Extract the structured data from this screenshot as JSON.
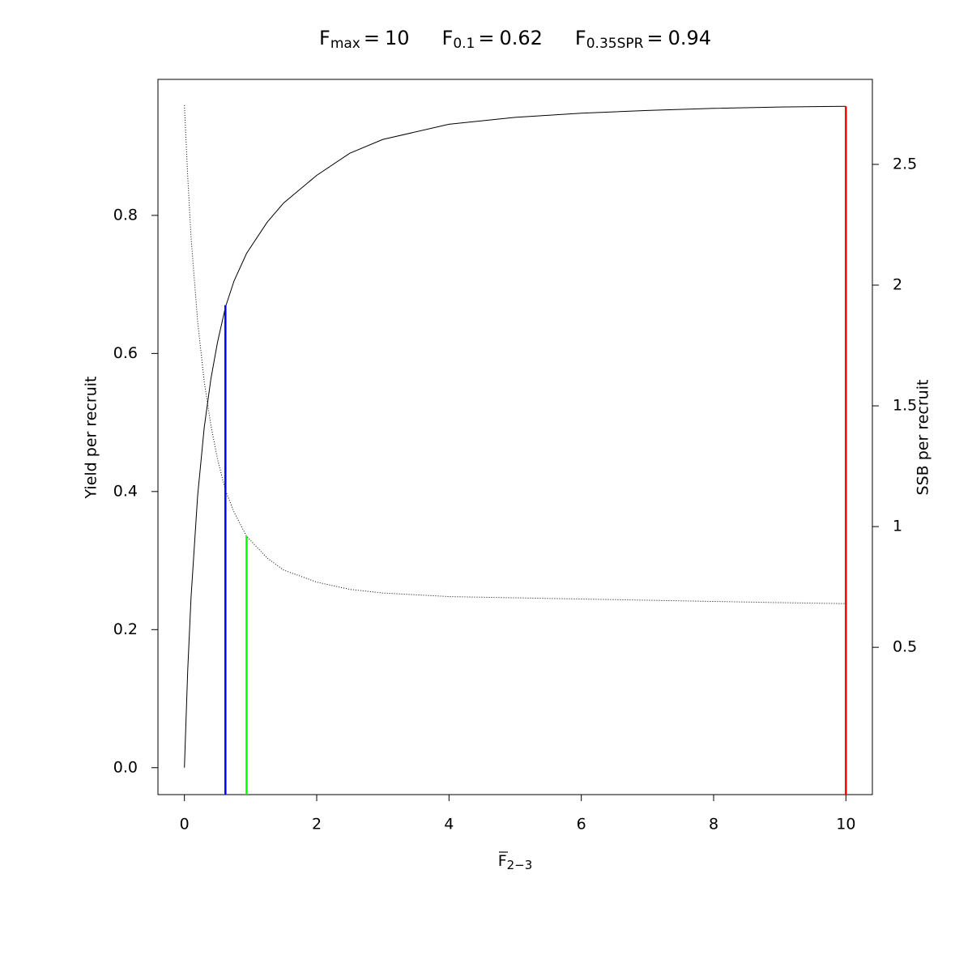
{
  "chart_data": {
    "type": "line",
    "title_parts": [
      {
        "symbol": "F",
        "subscript": "max",
        "value": 10
      },
      {
        "symbol": "F",
        "subscript": "0.1",
        "value": 0.62
      },
      {
        "symbol": "F",
        "subscript": "0.35SPR",
        "value": 0.94
      }
    ],
    "relation": "=",
    "xlabel": {
      "symbol": "F",
      "subscript": "2−3"
    },
    "ylabel": "Yield per recruit",
    "y2label": "SSB per recruit",
    "x": [
      0,
      0.05,
      0.1,
      0.2,
      0.3,
      0.4,
      0.5,
      0.62,
      0.75,
      0.94,
      1.25,
      1.5,
      2,
      2.5,
      3,
      4,
      5,
      6,
      7,
      8,
      9,
      10
    ],
    "series": [
      {
        "color": "#000000",
        "dash": "none",
        "values": [
          0,
          0.141,
          0.246,
          0.394,
          0.493,
          0.563,
          0.616,
          0.667,
          0.705,
          0.745,
          0.79,
          0.818,
          0.858,
          0.89,
          0.91,
          0.932,
          0.942,
          0.948,
          0.952,
          0.955,
          0.957,
          0.958
        ]
      },
      {
        "color": "#000000",
        "dash": "1,2",
        "axis": "y2",
        "values": [
          2.745,
          2.45,
          2.2,
          1.85,
          1.6,
          1.42,
          1.28,
          1.15,
          1.06,
          0.96,
          0.87,
          0.82,
          0.77,
          0.74,
          0.725,
          0.71,
          0.705,
          0.7,
          0.695,
          0.69,
          0.685,
          0.681
        ]
      }
    ],
    "ref_lines": [
      {
        "value": 10,
        "top": 0.958,
        "color": "#ff0000"
      },
      {
        "value": 0.62,
        "top": 0.67,
        "color": "#0000ff"
      },
      {
        "value": 0.94,
        "top": 0.96,
        "color": "#00ff00",
        "axis": "y2"
      }
    ],
    "xlim": [
      -0.4,
      10.4
    ],
    "xticks": [
      0,
      2,
      4,
      6,
      8,
      10
    ],
    "ylim": [
      -0.039,
      0.997
    ],
    "yticks": [
      {
        "value": 0,
        "label": "0.0"
      },
      0.2,
      0.4,
      0.6,
      0.8
    ],
    "y2lim": [
      -0.11,
      2.852
    ],
    "y2ticks": [
      0.5,
      1,
      1.5,
      2,
      2.5
    ]
  }
}
